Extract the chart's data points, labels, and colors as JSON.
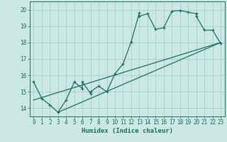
{
  "title": "",
  "xlabel": "Humidex (Indice chaleur)",
  "ylabel": "",
  "xlim": [
    -0.5,
    23.5
  ],
  "ylim": [
    13.5,
    20.5
  ],
  "yticks": [
    14,
    15,
    16,
    17,
    18,
    19,
    20
  ],
  "xticks": [
    0,
    1,
    2,
    3,
    4,
    5,
    6,
    7,
    8,
    9,
    10,
    11,
    12,
    13,
    14,
    15,
    16,
    17,
    18,
    19,
    20,
    21,
    22,
    23
  ],
  "bg_color": "#cce8e4",
  "grid_color": "#a8d0cc",
  "line_color": "#1a6e64",
  "line1_x": [
    0,
    1,
    2,
    3,
    4,
    5,
    6,
    6,
    7,
    7,
    8,
    9,
    10,
    11,
    12,
    13,
    13,
    14,
    15,
    16,
    17,
    18,
    19,
    20,
    20,
    21,
    22,
    23
  ],
  "line1_y": [
    15.6,
    14.6,
    14.2,
    13.75,
    14.5,
    15.6,
    15.2,
    15.6,
    14.9,
    15.0,
    15.35,
    15.0,
    16.1,
    16.7,
    18.05,
    19.8,
    19.6,
    19.75,
    18.8,
    18.9,
    19.9,
    19.95,
    19.85,
    19.75,
    19.6,
    18.75,
    18.75,
    17.95
  ],
  "line2_x": [
    0,
    23
  ],
  "line2_y": [
    14.5,
    18.0
  ],
  "line3_x": [
    3,
    23
  ],
  "line3_y": [
    13.75,
    18.0
  ]
}
